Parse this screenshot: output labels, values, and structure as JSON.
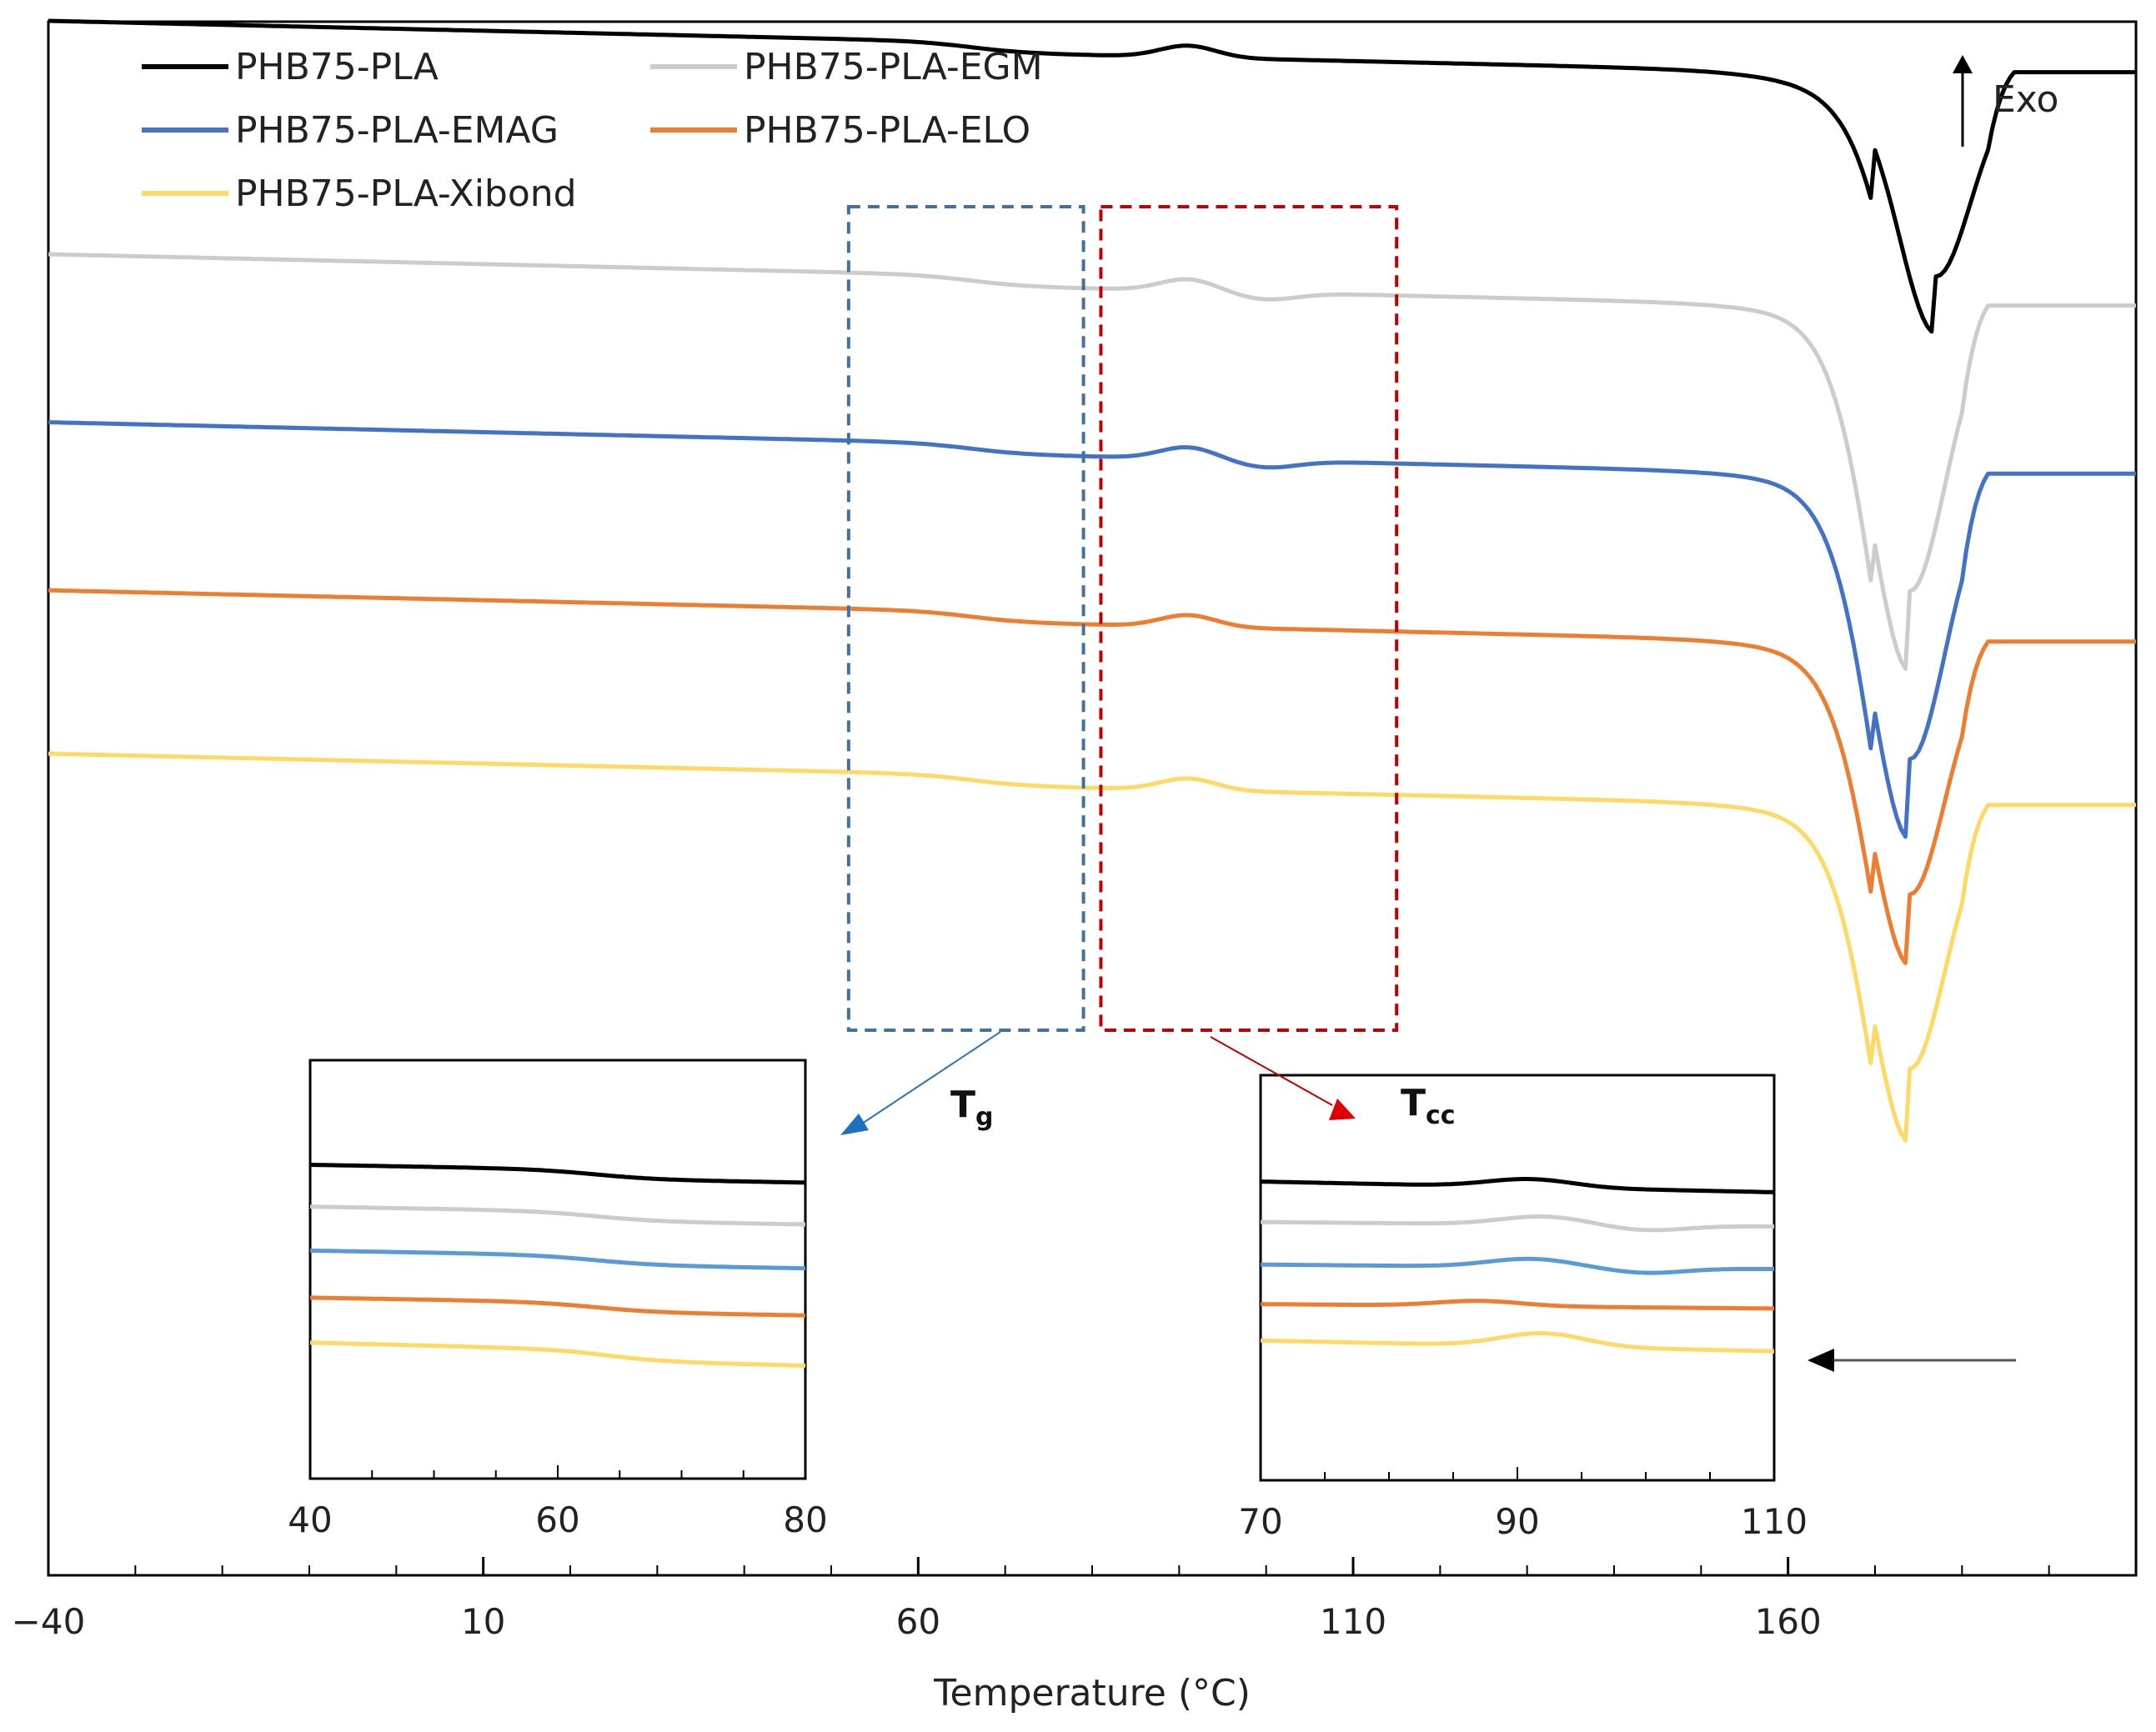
{
  "chart_data": {
    "type": "line",
    "title": "",
    "xlabel": "Temperature (°C)",
    "ylabel": "",
    "xlim": [
      -40,
      200
    ],
    "x_ticks": [
      -40,
      10,
      60,
      110,
      160
    ],
    "x_tick_labels": [
      "−40",
      "10",
      "60",
      "110",
      "160"
    ],
    "grid": false,
    "legend_position": "top-left",
    "exo_label": "Exo",
    "series": [
      {
        "name": "PHB75-PLA",
        "color": "#000000",
        "baseline": 1.0,
        "end": 0.78,
        "peak_x": 177,
        "peak_depth": 0.37
      },
      {
        "name": "PHB75-PLA-EGM",
        "color": "#cccccc",
        "baseline": 0.0,
        "end": -0.22,
        "peak_x": 174,
        "peak_depth": 0.52
      },
      {
        "name": "PHB75-PLA-EMAG",
        "color": "#4472c4",
        "baseline": -0.72,
        "end": -0.94,
        "peak_x": 174,
        "peak_depth": 0.52
      },
      {
        "name": "PHB75-PLA-ELO",
        "color": "#ed7d31",
        "baseline": -1.44,
        "end": -1.66,
        "peak_x": 174,
        "peak_depth": 0.46
      },
      {
        "name": "PHB75-PLA-Xibond",
        "color": "#ffd966",
        "baseline": -2.14,
        "end": -2.36,
        "peak_x": 174,
        "peak_depth": 0.48
      }
    ],
    "highlight_boxes": [
      {
        "name": "Tg region",
        "color": "#41719c",
        "x_range": [
          52,
          79
        ]
      },
      {
        "name": "Tcc region",
        "color": "#c00000",
        "x_range": [
          81,
          115
        ]
      }
    ],
    "insets": [
      {
        "label_main": "T",
        "label_sub": "g",
        "x_range": [
          40,
          80
        ],
        "x_ticks": [
          40,
          60,
          80
        ],
        "x_tick_labels": [
          "40",
          "60",
          "80"
        ]
      },
      {
        "label_main": "T",
        "label_sub": "cc",
        "x_range": [
          70,
          110
        ],
        "x_ticks": [
          70,
          90,
          110
        ],
        "x_tick_labels": [
          "70",
          "90",
          "110"
        ]
      }
    ]
  }
}
